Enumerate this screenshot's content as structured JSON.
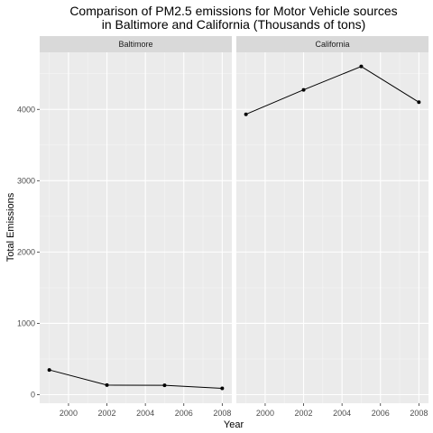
{
  "chart_data": {
    "type": "line",
    "title": [
      "Comparison of PM2.5 emissions for Motor Vehicle sources",
      "in Baltimore and California (Thousands of tons)"
    ],
    "xlabel": "Year",
    "ylabel": "Total Emissions",
    "xlim": [
      1998.5,
      2008.5
    ],
    "ylim": [
      -120,
      4800
    ],
    "x_ticks": [
      2000,
      2002,
      2004,
      2006,
      2008
    ],
    "y_ticks": [
      0,
      1000,
      2000,
      3000,
      4000
    ],
    "grid": true,
    "facets": [
      {
        "name": "Baltimore",
        "x": [
          1999,
          2002,
          2005,
          2008
        ],
        "y": [
          347,
          134,
          131,
          89
        ]
      },
      {
        "name": "California",
        "x": [
          1999,
          2002,
          2005,
          2008
        ],
        "y": [
          3931,
          4274,
          4602,
          4101
        ]
      }
    ]
  }
}
